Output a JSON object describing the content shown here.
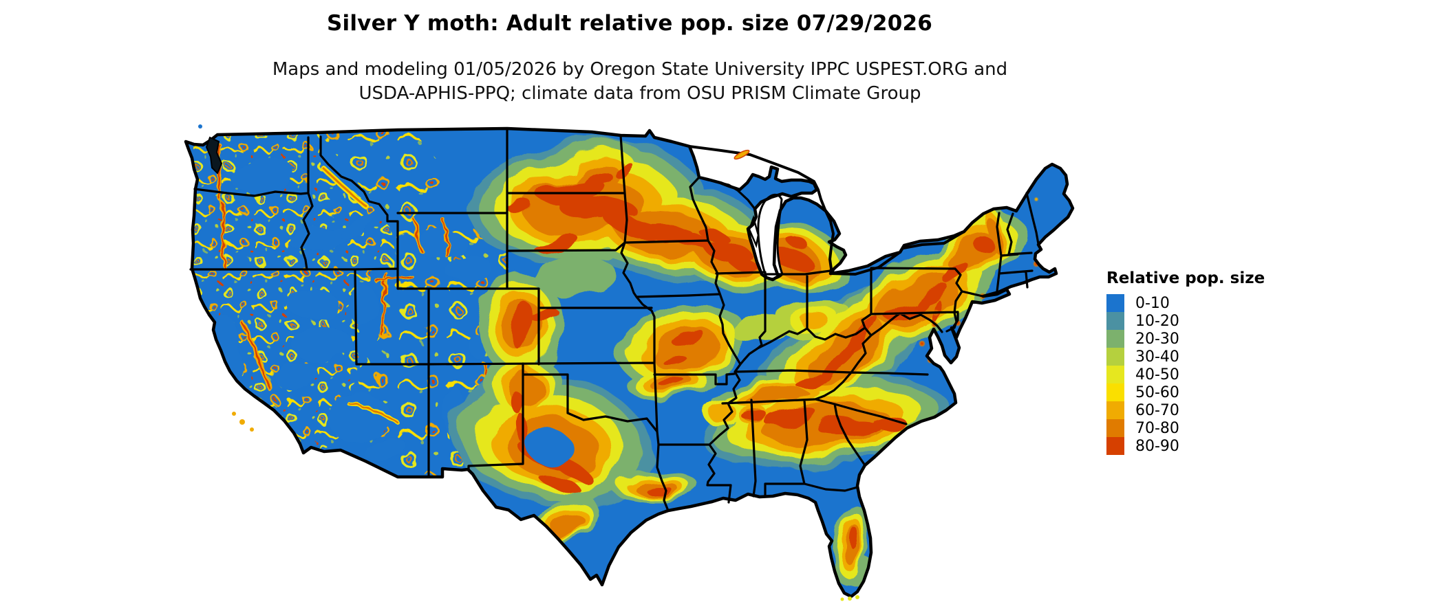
{
  "title": "Silver Y moth: Adult relative pop. size 07/29/2026",
  "subtitle_line1": "Maps and modeling 01/05/2026 by Oregon State University IPPC USPEST.ORG and",
  "subtitle_line2": "USDA-APHIS-PPQ; climate data from OSU PRISM Climate Group",
  "legend": {
    "title": "Relative pop. size",
    "items": [
      {
        "label": "0-10",
        "color": "#1b74ce"
      },
      {
        "label": "10-20",
        "color": "#4b91a2"
      },
      {
        "label": "20-30",
        "color": "#7cb16d"
      },
      {
        "label": "30-40",
        "color": "#b5d03e"
      },
      {
        "label": "40-50",
        "color": "#e6e71f"
      },
      {
        "label": "50-60",
        "color": "#fadf00"
      },
      {
        "label": "60-70",
        "color": "#f0ab02"
      },
      {
        "label": "70-80",
        "color": "#e07b00"
      },
      {
        "label": "80-90",
        "color": "#d64000"
      }
    ]
  },
  "map": {
    "type": "raster-choropleth",
    "region": "Continental United States with state boundaries",
    "background_color": "#ffffff",
    "base_color": "#1b74ce",
    "border_color": "#000000",
    "water_color": "#ffffff",
    "value_name": "Relative pop. size",
    "high_value_regions": [
      "Northern Plains band (ND-SD-MN-IA-WI-MI)",
      "Western mountain ranges (Cascades, Sierra Nevada, Great Basin ranges, Rockies)",
      "Colorado Front Range and western Kansas",
      "Central Texas arc and Texas panhandle caprock",
      "Ozark and Ouachita mountains",
      "Southern band (LA-MS-AL-GA-SC)",
      "Appalachians (TN-NC-VA-WV-PA-NY)",
      "New England uplands",
      "Central Florida ridge",
      "Louisiana Gulf coast"
    ]
  }
}
